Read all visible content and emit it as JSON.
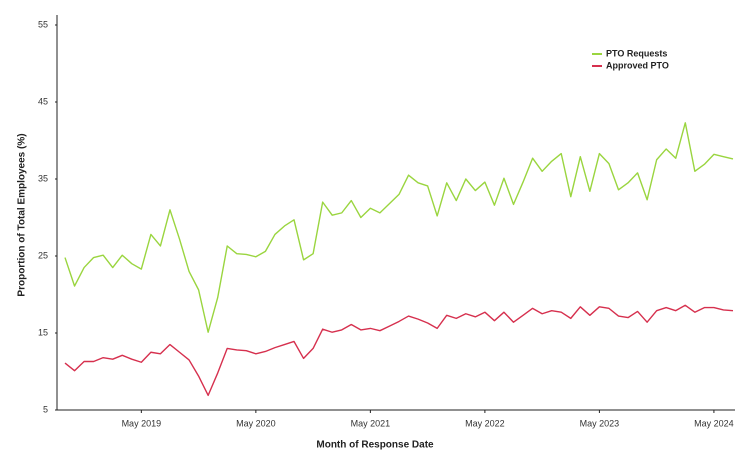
{
  "chart_data": {
    "type": "line",
    "xlabel": "Month of Response Date",
    "ylabel": "Proportion of Total Employees (%)",
    "x": [
      "2018-09",
      "2018-10",
      "2018-11",
      "2018-12",
      "2019-01",
      "2019-02",
      "2019-03",
      "2019-04",
      "2019-05",
      "2019-06",
      "2019-07",
      "2019-08",
      "2019-09",
      "2019-10",
      "2019-11",
      "2019-12",
      "2020-01",
      "2020-02",
      "2020-03",
      "2020-04",
      "2020-05",
      "2020-06",
      "2020-07",
      "2020-08",
      "2020-09",
      "2020-10",
      "2020-11",
      "2020-12",
      "2021-01",
      "2021-02",
      "2021-03",
      "2021-04",
      "2021-05",
      "2021-06",
      "2021-07",
      "2021-08",
      "2021-09",
      "2021-10",
      "2021-11",
      "2021-12",
      "2022-01",
      "2022-02",
      "2022-03",
      "2022-04",
      "2022-05",
      "2022-06",
      "2022-07",
      "2022-08",
      "2022-09",
      "2022-10",
      "2022-11",
      "2022-12",
      "2023-01",
      "2023-02",
      "2023-03",
      "2023-04",
      "2023-05",
      "2023-06",
      "2023-07",
      "2023-08",
      "2023-09",
      "2023-10",
      "2023-11",
      "2023-12",
      "2024-01",
      "2024-02",
      "2024-03",
      "2024-04",
      "2024-05",
      "2024-06",
      "2024-07"
    ],
    "xticks": [
      {
        "value": "2019-05",
        "label": "May 2019"
      },
      {
        "value": "2020-05",
        "label": "May 2020"
      },
      {
        "value": "2021-05",
        "label": "May 2021"
      },
      {
        "value": "2022-05",
        "label": "May 2022"
      },
      {
        "value": "2023-05",
        "label": "May 2023"
      },
      {
        "value": "2024-05",
        "label": "May 2024"
      }
    ],
    "ylim": [
      5,
      55
    ],
    "yticks": [
      5,
      15,
      25,
      35,
      45,
      55
    ],
    "grid": false,
    "legend": "upper right",
    "series": [
      {
        "name": "PTO Requests",
        "color": "#9ad53f",
        "values": [
          24.8,
          21.1,
          23.5,
          24.8,
          25.1,
          23.5,
          25.1,
          24,
          23.3,
          27.8,
          26.3,
          31,
          27.2,
          23,
          20.6,
          15.1,
          19.6,
          26.3,
          25.3,
          25.2,
          24.9,
          25.6,
          27.8,
          28.9,
          29.7,
          24.5,
          25.3,
          32,
          30.3,
          30.6,
          32.2,
          30,
          31.2,
          30.6,
          31.8,
          33,
          35.5,
          34.5,
          34.1,
          30.2,
          34.5,
          32.2,
          35,
          33.5,
          34.6,
          31.6,
          35.1,
          31.7,
          34.6,
          37.7,
          36,
          37.3,
          38.3,
          32.7,
          37.9,
          33.4,
          38.3,
          37,
          33.6,
          34.5,
          35.8,
          32.3,
          37.5,
          38.9,
          37.7,
          42.3,
          36,
          36.9,
          38.2,
          37.9,
          37.6
        ]
      },
      {
        "name": "Approved PTO",
        "color": "#d6304e",
        "values": [
          11.1,
          10.1,
          11.3,
          11.3,
          11.8,
          11.6,
          12.1,
          11.6,
          11.2,
          12.5,
          12.3,
          13.5,
          12.5,
          11.5,
          9.4,
          6.9,
          9.8,
          13,
          12.8,
          12.7,
          12.3,
          12.6,
          13.1,
          13.5,
          13.9,
          11.7,
          13,
          15.5,
          15.1,
          15.4,
          16.1,
          15.4,
          15.6,
          15.3,
          15.9,
          16.5,
          17.2,
          16.8,
          16.3,
          15.6,
          17.3,
          16.9,
          17.5,
          17.1,
          17.7,
          16.6,
          17.7,
          16.4,
          17.3,
          18.2,
          17.5,
          17.9,
          17.7,
          16.9,
          18.4,
          17.3,
          18.4,
          18.2,
          17.2,
          17.0,
          17.8,
          16.4,
          17.9,
          18.3,
          17.9,
          18.6,
          17.7,
          18.3,
          18.3,
          18.0,
          17.9
        ]
      }
    ]
  }
}
